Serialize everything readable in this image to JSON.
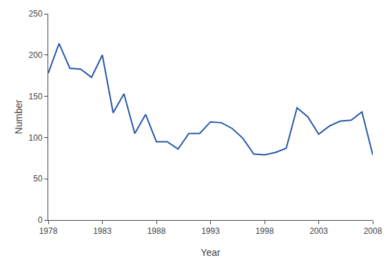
{
  "chart_data": {
    "type": "line",
    "x": [
      1978,
      1979,
      1980,
      1981,
      1982,
      1983,
      1984,
      1985,
      1986,
      1987,
      1988,
      1989,
      1990,
      1991,
      1992,
      1993,
      1994,
      1995,
      1996,
      1997,
      1998,
      1999,
      2000,
      2001,
      2002,
      2003,
      2004,
      2005,
      2006,
      2007,
      2008
    ],
    "values": [
      178,
      214,
      184,
      183,
      173,
      200,
      130,
      153,
      105,
      128,
      95,
      95,
      86,
      105,
      105,
      119,
      118,
      111,
      99,
      80,
      79,
      82,
      87,
      136,
      125,
      104,
      114,
      120,
      121,
      131,
      79
    ],
    "color": "#2457a8",
    "xlabel": "Year",
    "ylabel": "Number",
    "xlim": [
      1978,
      2008
    ],
    "ylim": [
      0,
      250
    ],
    "xticks": [
      1978,
      1983,
      1988,
      1993,
      1998,
      2003,
      2008
    ],
    "yticks": [
      0,
      50,
      100,
      150,
      200,
      250
    ],
    "grid": false
  }
}
